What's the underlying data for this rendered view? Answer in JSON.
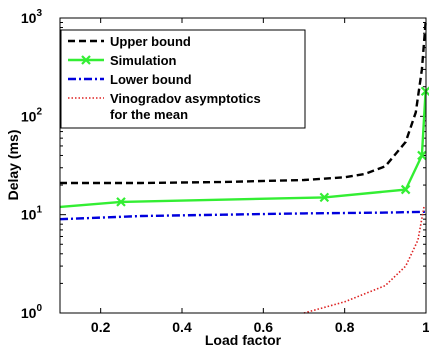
{
  "chart_data": {
    "type": "line",
    "xlabel": "Load factor",
    "ylabel": "Delay (ms)",
    "xlim": [
      0.1,
      1.0
    ],
    "ylim": [
      1,
      1000
    ],
    "yscale": "log",
    "x_ticks": [
      {
        "value": 0.2,
        "label": "0.2"
      },
      {
        "value": 0.4,
        "label": "0.4"
      },
      {
        "value": 0.6,
        "label": "0.6"
      },
      {
        "value": 0.8,
        "label": "0.8"
      },
      {
        "value": 1.0,
        "label": "1"
      }
    ],
    "y_ticks": [
      {
        "value": 1,
        "base": "10",
        "exp": "0"
      },
      {
        "value": 10,
        "base": "10",
        "exp": "1"
      },
      {
        "value": 100,
        "base": "10",
        "exp": "2"
      },
      {
        "value": 1000,
        "base": "10",
        "exp": "3"
      }
    ],
    "legend_position": "top-left",
    "series": [
      {
        "name": "Upper bound",
        "color": "#000000",
        "style": "dashed",
        "x": [
          0.1,
          0.3,
          0.5,
          0.7,
          0.8,
          0.85,
          0.9,
          0.95,
          0.975,
          0.99,
          0.999
        ],
        "y": [
          21,
          21,
          21.5,
          22.5,
          24,
          26,
          31,
          55,
          110,
          300,
          900
        ]
      },
      {
        "name": "Simulation",
        "color": "#33ee33",
        "style": "solid",
        "marker": "x",
        "x": [
          0.1,
          0.25,
          0.75,
          0.95,
          0.99,
          0.999
        ],
        "y": [
          12,
          13.5,
          15,
          18,
          40,
          180
        ],
        "marker_x": [
          0.25,
          0.75,
          0.95,
          0.99,
          0.999
        ],
        "marker_y": [
          13.5,
          15,
          18,
          40,
          180
        ]
      },
      {
        "name": "Lower bound",
        "color": "#0000dd",
        "style": "dashdot",
        "x": [
          0.1,
          0.3,
          0.5,
          0.7,
          0.9,
          0.999
        ],
        "y": [
          9,
          9.7,
          10,
          10.3,
          10.5,
          10.7
        ]
      },
      {
        "name": "Vinogradov asymptotics for the mean",
        "legend_lines": [
          "Vinogradov asymptotics",
          "for the mean"
        ],
        "color": "#dd2222",
        "style": "dotted",
        "x": [
          0.7,
          0.8,
          0.9,
          0.95,
          0.98,
          0.995
        ],
        "y": [
          1.0,
          1.3,
          1.9,
          3.0,
          5.5,
          12
        ]
      }
    ]
  }
}
